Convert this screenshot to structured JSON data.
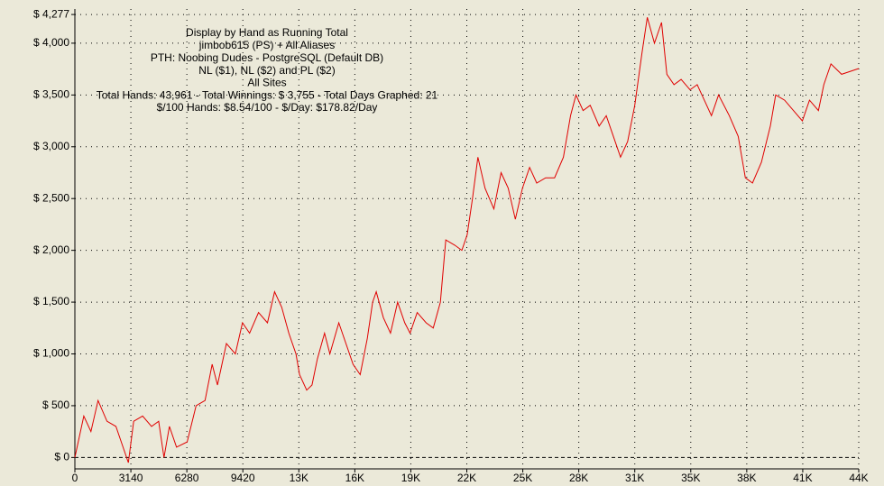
{
  "chart_data": {
    "type": "line",
    "title": "Display by Hand as Running Total",
    "subtitle_lines": [
      "jimbob615 (PS) + All Aliases",
      "PTH: Noobing Dudes - PostgreSQL (Default DB)",
      "NL ($1), NL ($2) and PL ($2)",
      "All Sites",
      "Total Hands: 43,961 - Total Winnings: $ 3,755 - Total Days Graphed: 21",
      "$/100 Hands: $8.54/100 - $/Day: $178.82/Day"
    ],
    "color": "#e00000",
    "x": [
      0,
      500,
      900,
      1300,
      1800,
      2300,
      2700,
      3000,
      3300,
      3800,
      4300,
      4700,
      5000,
      5300,
      5700,
      6300,
      6800,
      7300,
      7700,
      8000,
      8500,
      9000,
      9400,
      9800,
      10300,
      10800,
      11200,
      11600,
      12000,
      12400,
      12600,
      13000,
      13300,
      13600,
      14000,
      14300,
      14800,
      15200,
      15600,
      16000,
      16400,
      16700,
      16900,
      17300,
      17700,
      18100,
      18500,
      18800,
      19200,
      19700,
      20100,
      20500,
      20800,
      21300,
      21700,
      22000,
      22300,
      22600,
      23000,
      23500,
      23900,
      24300,
      24700,
      25100,
      25500,
      25900,
      26400,
      26900,
      27400,
      27800,
      28100,
      28500,
      28900,
      29400,
      29800,
      30200,
      30600,
      31000,
      31400,
      31800,
      32100,
      32500,
      32900,
      33200,
      33600,
      34000,
      34500,
      34900,
      35300,
      35700,
      36100,
      36700,
      37200,
      37600,
      38000,
      38500,
      39000,
      39300,
      39800,
      40300,
      40800,
      41200,
      41700,
      42000,
      42400,
      43000,
      43961
    ],
    "values": [
      0,
      400,
      250,
      550,
      350,
      300,
      100,
      -50,
      350,
      400,
      300,
      350,
      0,
      300,
      100,
      150,
      500,
      550,
      900,
      700,
      1100,
      1000,
      1300,
      1200,
      1400,
      1300,
      1600,
      1450,
      1200,
      1000,
      800,
      650,
      700,
      950,
      1200,
      1000,
      1300,
      1100,
      900,
      800,
      1150,
      1500,
      1600,
      1350,
      1200,
      1500,
      1300,
      1200,
      1400,
      1300,
      1250,
      1500,
      2100,
      2050,
      2000,
      2150,
      2500,
      2900,
      2600,
      2400,
      2750,
      2600,
      2300,
      2600,
      2800,
      2650,
      2700,
      2700,
      2900,
      3300,
      3500,
      3350,
      3400,
      3200,
      3300,
      3100,
      2900,
      3050,
      3400,
      3900,
      4250,
      4000,
      4200,
      3700,
      3600,
      3650,
      3550,
      3600,
      3450,
      3300,
      3500,
      3300,
      3100,
      2700,
      2650,
      2850,
      3200,
      3500,
      3450,
      3350,
      3250,
      3450,
      3350,
      3600,
      3800,
      3700,
      3755
    ],
    "xlim": [
      0,
      43960
    ],
    "xticks": [
      0,
      3140,
      6280,
      9420,
      {
        "value": 12560,
        "label": "13K"
      },
      {
        "value": 15700,
        "label": "16K"
      },
      {
        "value": 18840,
        "label": "19K"
      },
      {
        "value": 21980,
        "label": "22K"
      },
      {
        "value": 25120,
        "label": "25K"
      },
      {
        "value": 28260,
        "label": "28K"
      },
      {
        "value": 31400,
        "label": "31K"
      },
      {
        "value": 34540,
        "label": "35K"
      },
      {
        "value": 37680,
        "label": "38K"
      },
      {
        "value": 40820,
        "label": "41K"
      },
      {
        "value": 43960,
        "label": "44K"
      }
    ],
    "ylim": [
      -110,
      4330
    ],
    "yticks": [
      {
        "value": 0,
        "label": "$ 0"
      },
      {
        "value": 500,
        "label": "$ 500"
      },
      {
        "value": 1000,
        "label": "$ 1,000"
      },
      {
        "value": 1500,
        "label": "$ 1,500"
      },
      {
        "value": 2000,
        "label": "$ 2,000"
      },
      {
        "value": 2500,
        "label": "$ 2,500"
      },
      {
        "value": 3000,
        "label": "$ 3,000"
      },
      {
        "value": 3500,
        "label": "$ 3,500"
      },
      {
        "value": 4000,
        "label": "$ 4,000"
      },
      {
        "value": 4277,
        "label": "$ 4,277"
      }
    ],
    "grid": true
  }
}
